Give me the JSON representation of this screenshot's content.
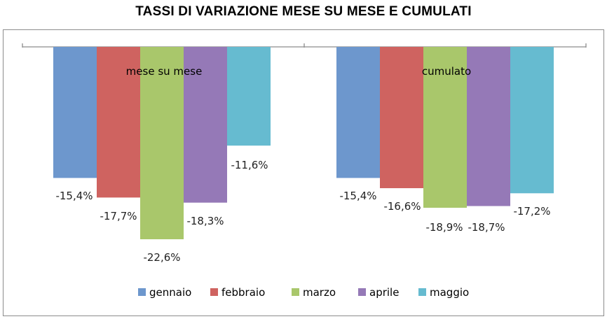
{
  "chart_data": {
    "type": "bar",
    "title": "TASSI DI VARIAZIONE MESE SU MESE E CUMULATI",
    "categories": [
      "mese su mese",
      "cumulato"
    ],
    "series": [
      {
        "name": "gennaio",
        "color": "#6d97cd",
        "values": [
          -15.4,
          -15.4
        ],
        "labels": [
          "-15,4%",
          "-15,4%"
        ]
      },
      {
        "name": "febbraio",
        "color": "#cf6360",
        "values": [
          -17.7,
          -16.6
        ],
        "labels": [
          "-17,7%",
          "-16,6%"
        ]
      },
      {
        "name": "marzo",
        "color": "#a9c76b",
        "values": [
          -22.6,
          -18.9
        ],
        "labels": [
          "-22,6%",
          "-18,9%"
        ]
      },
      {
        "name": "aprile",
        "color": "#9579b7",
        "values": [
          -18.3,
          -18.7
        ],
        "labels": [
          "-18,3%",
          "-18,7%"
        ]
      },
      {
        "name": "maggio",
        "color": "#66bbd0",
        "values": [
          -11.6,
          -17.2
        ],
        "labels": [
          "-11,6%",
          "-17,2%"
        ]
      }
    ],
    "ylim": [
      -25,
      0
    ],
    "grid": false,
    "legend": "bottom"
  }
}
